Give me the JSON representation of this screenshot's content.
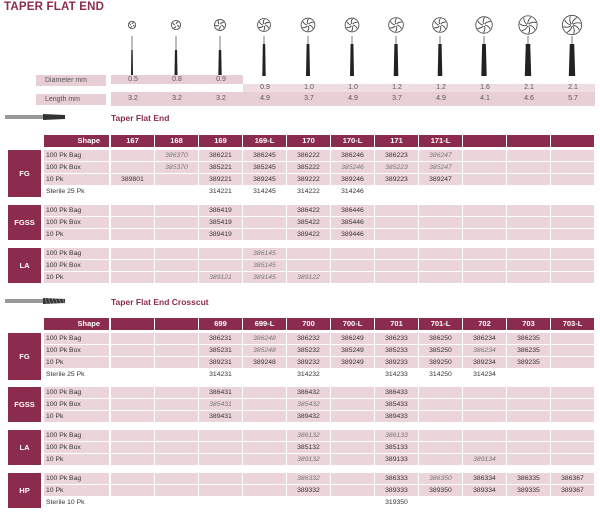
{
  "page_title": "TAPER FLAT END",
  "specs": {
    "diameter_label": "Diameter mm",
    "length_label": "Length mm",
    "diameter": [
      "0.5",
      "0.8",
      "0.9",
      "0.9",
      "1.0",
      "1.0",
      "1.2",
      "1.2",
      "1.6",
      "2.1",
      "2.1"
    ],
    "length": [
      "3.2",
      "3.2",
      "3.2",
      "4.9",
      "3.7",
      "4.9",
      "3.7",
      "4.9",
      "4.1",
      "4.6",
      "5.7"
    ]
  },
  "section1": {
    "title": "Taper Flat End",
    "shape_label": "Shape",
    "columns": [
      "167",
      "168",
      "169",
      "169-L",
      "170",
      "170-L",
      "171",
      "171-L",
      "",
      "",
      ""
    ],
    "groups": [
      {
        "name": "FG",
        "rows": [
          {
            "label": "100 Pk Bag",
            "cells": [
              "",
              "386370",
              "386221",
              "386245",
              "386222",
              "386246",
              "386223",
              "386247",
              "",
              "",
              ""
            ],
            "italic": [
              1,
              7
            ]
          },
          {
            "label": "100 Pk Box",
            "cells": [
              "",
              "385370",
              "385221",
              "385245",
              "385222",
              "385246",
              "385223",
              "385247",
              "",
              "",
              ""
            ],
            "italic": [
              1,
              5,
              6,
              7
            ]
          },
          {
            "label": "10 Pk",
            "cells": [
              "389801",
              "",
              "389221",
              "389245",
              "389222",
              "389246",
              "389223",
              "389247",
              "",
              "",
              ""
            ],
            "italic": []
          },
          {
            "label": "Sterile  25 Pk",
            "cells": [
              "",
              "",
              "314221",
              "314245",
              "314222",
              "314246",
              "",
              "",
              "",
              "",
              ""
            ],
            "italic": [],
            "plain": true
          }
        ]
      },
      {
        "name": "FGSS",
        "rows": [
          {
            "label": "100 Pk Bag",
            "cells": [
              "",
              "",
              "386419",
              "",
              "386422",
              "386446",
              "",
              "",
              "",
              "",
              ""
            ],
            "italic": []
          },
          {
            "label": "100 Pk Box",
            "cells": [
              "",
              "",
              "385419",
              "",
              "385422",
              "385446",
              "",
              "",
              "",
              "",
              ""
            ],
            "italic": []
          },
          {
            "label": "10 Pk",
            "cells": [
              "",
              "",
              "389419",
              "",
              "389422",
              "389446",
              "",
              "",
              "",
              "",
              ""
            ],
            "italic": []
          }
        ]
      },
      {
        "name": "LA",
        "rows": [
          {
            "label": "100 Pk Bag",
            "cells": [
              "",
              "",
              "",
              "386145",
              "",
              "",
              "",
              "",
              "",
              "",
              ""
            ],
            "italic": [
              3
            ]
          },
          {
            "label": "100 Pk Box",
            "cells": [
              "",
              "",
              "",
              "385145",
              "",
              "",
              "",
              "",
              "",
              "",
              ""
            ],
            "italic": [
              3
            ]
          },
          {
            "label": "10 Pk",
            "cells": [
              "",
              "",
              "389121",
              "389145",
              "389122",
              "",
              "",
              "",
              "",
              "",
              ""
            ],
            "italic": [
              2,
              3,
              4
            ]
          }
        ]
      }
    ]
  },
  "section2": {
    "title": "Taper Flat End Crosscut",
    "shape_label": "Shape",
    "columns": [
      "",
      "",
      "699",
      "699-L",
      "700",
      "700-L",
      "701",
      "701-L",
      "702",
      "703",
      "703-L"
    ],
    "groups": [
      {
        "name": "FG",
        "rows": [
          {
            "label": "100 Pk Bag",
            "cells": [
              "",
              "",
              "386231",
              "386248",
              "386232",
              "386249",
              "386233",
              "386250",
              "386234",
              "386235",
              ""
            ],
            "italic": [
              3
            ]
          },
          {
            "label": "100 Pk Box",
            "cells": [
              "",
              "",
              "385231",
              "385248",
              "385232",
              "385249",
              "385233",
              "385250",
              "386234",
              "386235",
              ""
            ],
            "italic": [
              3,
              8
            ]
          },
          {
            "label": "10 Pk",
            "cells": [
              "",
              "",
              "389231",
              "389248",
              "389232",
              "389249",
              "389233",
              "389250",
              "389234",
              "389235",
              ""
            ],
            "italic": []
          },
          {
            "label": "Sterile  25 Pk",
            "cells": [
              "",
              "",
              "314231",
              "",
              "314232",
              "",
              "314233",
              "314250",
              "314234",
              "",
              ""
            ],
            "italic": [],
            "plain": true
          }
        ]
      },
      {
        "name": "FGSS",
        "rows": [
          {
            "label": "100 Pk Bag",
            "cells": [
              "",
              "",
              "386431",
              "",
              "386432",
              "",
              "386433",
              "",
              "",
              "",
              ""
            ],
            "italic": []
          },
          {
            "label": "100 Pk Box",
            "cells": [
              "",
              "",
              "385431",
              "",
              "385432",
              "",
              "385433",
              "",
              "",
              "",
              ""
            ],
            "italic": [
              2,
              4
            ]
          },
          {
            "label": "10 Pk",
            "cells": [
              "",
              "",
              "389431",
              "",
              "389432",
              "",
              "389433",
              "",
              "",
              "",
              ""
            ],
            "italic": []
          }
        ]
      },
      {
        "name": "LA",
        "rows": [
          {
            "label": "100 Pk Bag",
            "cells": [
              "",
              "",
              "",
              "",
              "386132",
              "",
              "386133",
              "",
              "",
              "",
              ""
            ],
            "italic": [
              4,
              6
            ]
          },
          {
            "label": "100 Pk Box",
            "cells": [
              "",
              "",
              "",
              "",
              "385132",
              "",
              "385133",
              "",
              "",
              "",
              ""
            ],
            "italic": []
          },
          {
            "label": "10 Pk",
            "cells": [
              "",
              "",
              "",
              "",
              "389132",
              "",
              "389133",
              "",
              "389134",
              "",
              ""
            ],
            "italic": [
              4,
              8
            ]
          }
        ]
      },
      {
        "name": "HP",
        "rows": [
          {
            "label": "100 Pk Bag",
            "cells": [
              "",
              "",
              "",
              "",
              "386332",
              "",
              "386333",
              "386350",
              "386334",
              "386335",
              "386367"
            ],
            "italic": [
              4,
              7
            ]
          },
          {
            "label": "10 Pk",
            "cells": [
              "",
              "",
              "",
              "",
              "389332",
              "",
              "389333",
              "389350",
              "389334",
              "389335",
              "389367"
            ],
            "italic": []
          },
          {
            "label": "Sterile  10 Pk",
            "cells": [
              "",
              "",
              "",
              "",
              "",
              "",
              "319350",
              "",
              "",
              "",
              ""
            ],
            "italic": [],
            "plain": true
          }
        ]
      }
    ]
  }
}
